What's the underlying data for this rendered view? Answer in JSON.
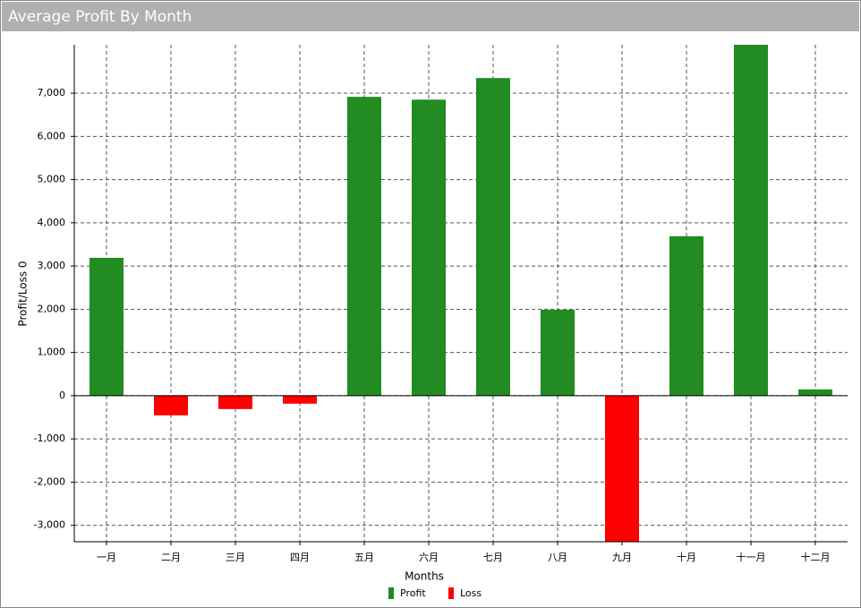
{
  "chart_data": {
    "type": "bar",
    "title": "Average Profit By Month",
    "x_label": "Months",
    "y_label": "Profit/Loss 0",
    "categories": [
      "一月",
      "二月",
      "三月",
      "四月",
      "五月",
      "六月",
      "七月",
      "八月",
      "九月",
      "十月",
      "十一月",
      "十二月"
    ],
    "series": [
      {
        "name": "Profit",
        "color": "#228b22",
        "values": [
          3190,
          null,
          null,
          null,
          6915,
          6850,
          7350,
          1990,
          null,
          3690,
          8120,
          145
        ]
      },
      {
        "name": "Loss",
        "color": "#ff0000",
        "values": [
          null,
          -455,
          -310,
          -185,
          null,
          null,
          null,
          null,
          -3380,
          null,
          null,
          null
        ]
      }
    ],
    "ylim": [
      -3380,
      8120
    ],
    "yticks": [
      {
        "value": -3000,
        "label": "-3,000"
      },
      {
        "value": -2000,
        "label": "-2,000"
      },
      {
        "value": -1000,
        "label": "-1,000"
      },
      0,
      {
        "value": 1000,
        "label": "1,000"
      },
      {
        "value": 2000,
        "label": "2,000"
      },
      {
        "value": 3000,
        "label": "3,000"
      },
      {
        "value": 4000,
        "label": "4,000"
      },
      {
        "value": 5000,
        "label": "5,000"
      },
      {
        "value": 6000,
        "label": "6,000"
      },
      {
        "value": 7000,
        "label": "7,000"
      }
    ],
    "grid": true
  }
}
